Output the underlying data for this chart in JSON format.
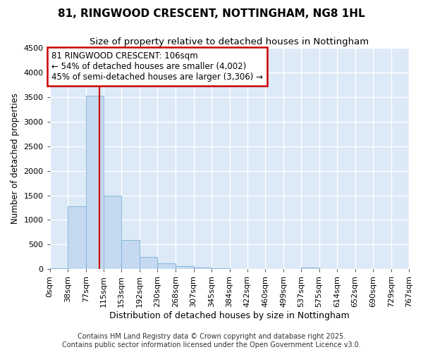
{
  "title": "81, RINGWOOD CRESCENT, NOTTINGHAM, NG8 1HL",
  "subtitle": "Size of property relative to detached houses in Nottingham",
  "xlabel": "Distribution of detached houses by size in Nottingham",
  "ylabel": "Number of detached properties",
  "bin_labels": [
    "0sqm",
    "38sqm",
    "77sqm",
    "115sqm",
    "153sqm",
    "192sqm",
    "230sqm",
    "268sqm",
    "307sqm",
    "345sqm",
    "384sqm",
    "422sqm",
    "460sqm",
    "499sqm",
    "537sqm",
    "575sqm",
    "614sqm",
    "652sqm",
    "690sqm",
    "729sqm",
    "767sqm"
  ],
  "bar_values": [
    25,
    1280,
    3530,
    1490,
    590,
    245,
    115,
    65,
    30,
    15,
    8,
    8,
    2,
    0,
    35,
    0,
    0,
    0,
    0,
    0
  ],
  "bin_edges": [
    0,
    38,
    77,
    115,
    153,
    192,
    230,
    268,
    307,
    345,
    384,
    422,
    460,
    499,
    537,
    575,
    614,
    652,
    690,
    729,
    767
  ],
  "bar_color": "#c5d9f0",
  "bar_edge_color": "#7ab0d8",
  "property_size": 106,
  "vline_color": "#cc0000",
  "ylim": [
    0,
    4500
  ],
  "yticks": [
    0,
    500,
    1000,
    1500,
    2000,
    2500,
    3000,
    3500,
    4000,
    4500
  ],
  "annotation_text": "81 RINGWOOD CRESCENT: 106sqm\n← 54% of detached houses are smaller (4,002)\n45% of semi-detached houses are larger (3,306) →",
  "annotation_box_facecolor": "#ffffff",
  "annotation_box_edgecolor": "#cc0000",
  "fig_bg_color": "#ffffff",
  "plot_bg_color": "#dce9f7",
  "grid_color": "#ffffff",
  "footer_text": "Contains HM Land Registry data © Crown copyright and database right 2025.\nContains public sector information licensed under the Open Government Licence v3.0.",
  "title_fontsize": 11,
  "subtitle_fontsize": 9.5,
  "xlabel_fontsize": 9,
  "ylabel_fontsize": 8.5,
  "tick_fontsize": 8,
  "annotation_fontsize": 8.5,
  "footer_fontsize": 7
}
